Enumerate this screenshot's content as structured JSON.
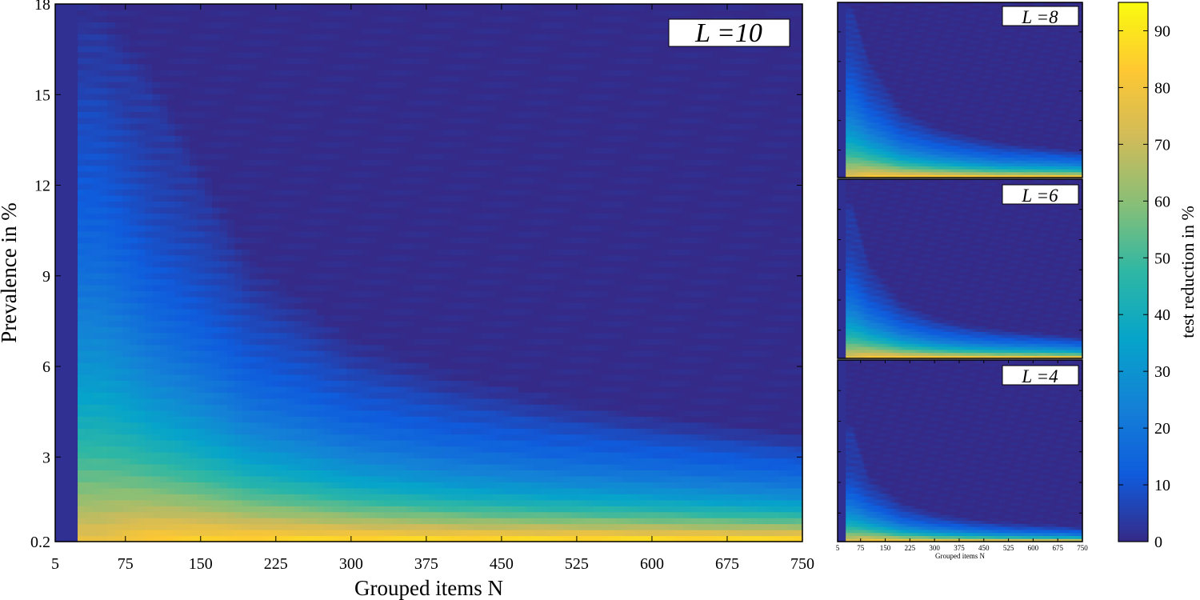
{
  "chart_data": [
    {
      "type": "heatmap",
      "panel_label": "L =10",
      "xlabel": "Grouped items N",
      "ylabel": "Prevalence in %",
      "x_ticks": [
        "5",
        "75",
        "150",
        "225",
        "300",
        "375",
        "450",
        "525",
        "600",
        "675",
        "750"
      ],
      "x_tick_values": [
        5,
        75,
        150,
        225,
        300,
        375,
        450,
        525,
        600,
        675,
        750
      ],
      "y_ticks": [
        "0.2",
        "3",
        "6",
        "9",
        "12",
        "15",
        "18"
      ],
      "y_tick_values": [
        0.2,
        3,
        6,
        9,
        12,
        15,
        18
      ],
      "xlim": [
        5,
        750
      ],
      "ylim": [
        0.2,
        18
      ],
      "n_min": 28,
      "decay_scale": 1.0,
      "values": {
        "x_N": [
          50,
          100,
          200,
          300,
          400,
          500,
          600,
          700,
          750
        ],
        "boundary_prevalence_zero_reduction": [
          18,
          16,
          9.6,
          7.0,
          5.8,
          5.0,
          4.4,
          4.0,
          3.8
        ],
        "prevalence_at_50pct_reduction": [
          4.4,
          3.3,
          2.2,
          1.7,
          1.45,
          1.3,
          1.2,
          1.1,
          1.05
        ],
        "max_reduction_at_low_prevalence": [
          78,
          85,
          88,
          90,
          91,
          92,
          93,
          93,
          94
        ]
      }
    },
    {
      "type": "heatmap",
      "panel_label": "L =8",
      "xlabel": "",
      "ylabel": "",
      "x_ticks": [],
      "y_ticks": [],
      "xlim": [
        5,
        750
      ],
      "ylim": [
        0.2,
        18
      ],
      "n_min": 28,
      "decay_scale": 0.75,
      "values": {
        "x_N": [
          50,
          100,
          200,
          300,
          400,
          500,
          600,
          700,
          750
        ],
        "boundary_prevalence_zero_reduction": [
          18,
          12.5,
          7.5,
          5.5,
          4.6,
          3.9,
          3.5,
          3.1,
          3.0
        ],
        "prevalence_at_50pct_reduction": [
          3.6,
          2.6,
          1.7,
          1.35,
          1.15,
          1.0,
          0.95,
          0.9,
          0.85
        ],
        "max_reduction_at_low_prevalence": [
          78,
          85,
          88,
          90,
          91,
          92,
          93,
          93,
          94
        ]
      }
    },
    {
      "type": "heatmap",
      "panel_label": "L =6",
      "xlabel": "",
      "ylabel": "",
      "x_ticks": [],
      "y_ticks": [],
      "xlim": [
        5,
        750
      ],
      "ylim": [
        0.2,
        18
      ],
      "n_min": 28,
      "decay_scale": 0.6,
      "values": {
        "x_N": [
          50,
          100,
          200,
          300,
          400,
          500,
          600,
          700,
          750
        ],
        "boundary_prevalence_zero_reduction": [
          16,
          10,
          6.0,
          4.4,
          3.6,
          3.1,
          2.8,
          2.5,
          2.4
        ],
        "prevalence_at_50pct_reduction": [
          2.9,
          2.1,
          1.4,
          1.1,
          0.95,
          0.85,
          0.8,
          0.75,
          0.7
        ],
        "max_reduction_at_low_prevalence": [
          78,
          85,
          88,
          90,
          91,
          92,
          93,
          93,
          94
        ]
      }
    },
    {
      "type": "heatmap",
      "panel_label": "L =4",
      "xlabel": "Grouped items N",
      "ylabel": "",
      "x_ticks": [
        "5",
        "75",
        "150",
        "225",
        "300",
        "375",
        "450",
        "525",
        "600",
        "675",
        "750"
      ],
      "x_tick_values": [
        5,
        75,
        150,
        225,
        300,
        375,
        450,
        525,
        600,
        675,
        750
      ],
      "y_ticks": [],
      "xlim": [
        5,
        750
      ],
      "ylim": [
        0.2,
        18
      ],
      "n_min": 28,
      "decay_scale": 0.42,
      "values": {
        "x_N": [
          50,
          100,
          200,
          300,
          400,
          500,
          600,
          700,
          750
        ],
        "boundary_prevalence_zero_reduction": [
          12,
          7.0,
          4.2,
          3.1,
          2.5,
          2.2,
          2.0,
          1.8,
          1.7
        ],
        "prevalence_at_50pct_reduction": [
          2.0,
          1.5,
          1.0,
          0.8,
          0.7,
          0.62,
          0.58,
          0.55,
          0.52
        ],
        "max_reduction_at_low_prevalence": [
          78,
          85,
          88,
          90,
          91,
          92,
          93,
          93,
          94
        ]
      }
    }
  ],
  "colorbar": {
    "label": "test reduction in %",
    "ticks": [
      "0",
      "10",
      "20",
      "30",
      "40",
      "50",
      "60",
      "70",
      "80",
      "90"
    ],
    "tick_values": [
      0,
      10,
      20,
      30,
      40,
      50,
      60,
      70,
      80,
      90
    ],
    "range": [
      0,
      95
    ],
    "colormap": "parula",
    "colors": [
      "#352a87",
      "#0f5cdd",
      "#1481d6",
      "#06a4ca",
      "#2eb7a4",
      "#87bf77",
      "#d1bb59",
      "#fec832",
      "#f9fb0e"
    ]
  }
}
